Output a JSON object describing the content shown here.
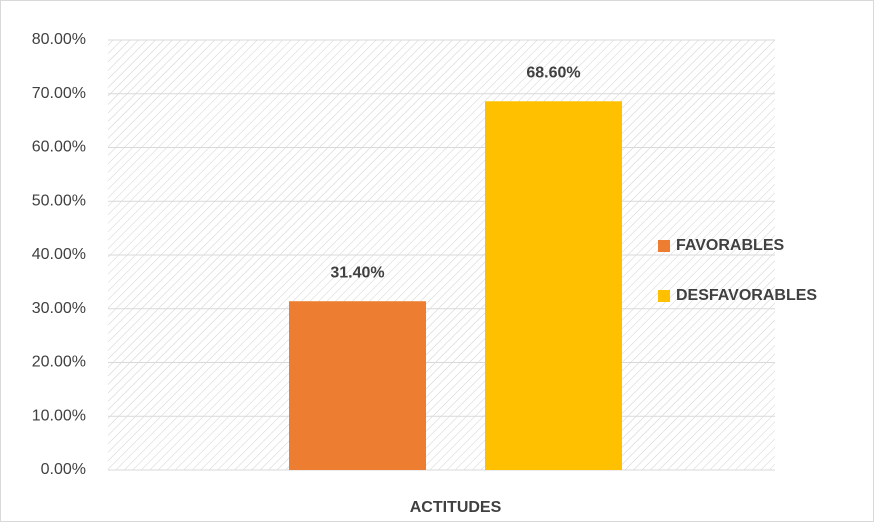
{
  "chart_data": {
    "type": "bar",
    "categories": [
      "ACTITUDES"
    ],
    "series": [
      {
        "name": "FAVORABLES",
        "color": "#ed7d31",
        "values": [
          31.4
        ],
        "value_labels": [
          "31.40%"
        ]
      },
      {
        "name": "DESFAVORABLES",
        "color": "#ffc000",
        "values": [
          68.6
        ],
        "value_labels": [
          "68.60%"
        ]
      }
    ],
    "ylim": [
      0,
      80
    ],
    "yticks": [
      {
        "value": 0,
        "label": "0.00%"
      },
      {
        "value": 10,
        "label": "10.00%"
      },
      {
        "value": 20,
        "label": "20.00%"
      },
      {
        "value": 30,
        "label": "30.00%"
      },
      {
        "value": 40,
        "label": "40.00%"
      },
      {
        "value": 50,
        "label": "50.00%"
      },
      {
        "value": 60,
        "label": "60.00%"
      },
      {
        "value": 70,
        "label": "70.00%"
      },
      {
        "value": 80,
        "label": "80.00%"
      }
    ],
    "grid": true,
    "legend": "right"
  }
}
